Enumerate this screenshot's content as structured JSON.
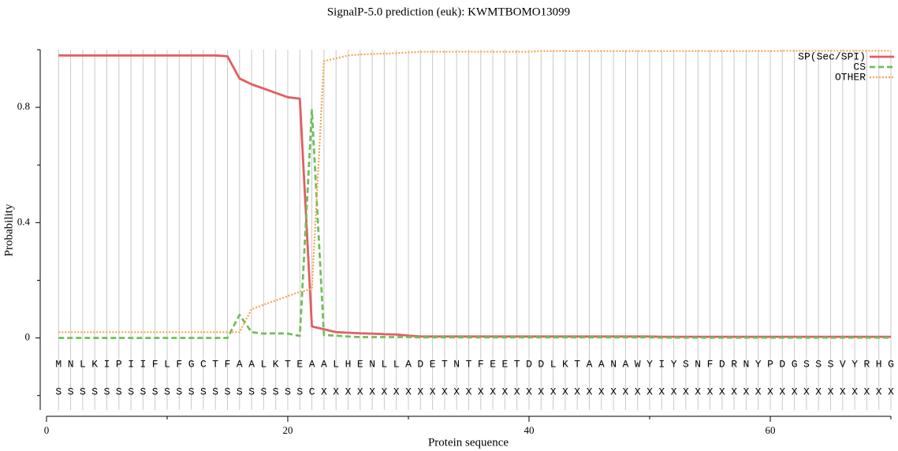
{
  "chart_data": {
    "type": "line",
    "title": "SignalP-5.0 prediction (euk):  KWMTBOMO13099",
    "xlabel": "Protein sequence",
    "ylabel": "Probability",
    "xlim": [
      0,
      70
    ],
    "xticks": [
      0,
      20,
      40,
      60
    ],
    "xminor_ticks": [
      10,
      30,
      50,
      70
    ],
    "ylim": [
      -0.25,
      1.0
    ],
    "yticks": [
      0,
      0.4,
      0.8
    ],
    "yminor_ticks": [
      -0.2,
      0.2,
      0.6,
      1.0
    ],
    "grid": "x",
    "legend": "top right",
    "x": [
      1,
      2,
      3,
      4,
      5,
      6,
      7,
      8,
      9,
      10,
      11,
      12,
      13,
      14,
      15,
      16,
      17,
      18,
      19,
      20,
      21,
      22,
      23,
      24,
      25,
      26,
      27,
      28,
      29,
      30,
      31,
      32,
      33,
      34,
      35,
      36,
      37,
      38,
      39,
      40,
      41,
      42,
      43,
      44,
      45,
      46,
      47,
      48,
      49,
      50,
      51,
      52,
      53,
      54,
      55,
      56,
      57,
      58,
      59,
      60,
      61,
      62,
      63,
      64,
      65,
      66,
      67,
      68,
      69,
      70
    ],
    "sequence": [
      "M",
      "N",
      "L",
      "K",
      "I",
      "P",
      "I",
      "I",
      "F",
      "L",
      "F",
      "G",
      "C",
      "T",
      "F",
      "A",
      "A",
      "L",
      "K",
      "T",
      "E",
      "A",
      "A",
      "L",
      "H",
      "E",
      "N",
      "L",
      "L",
      "A",
      "D",
      "E",
      "T",
      "N",
      "T",
      "F",
      "E",
      "E",
      "T",
      "D",
      "D",
      "L",
      "K",
      "T",
      "A",
      "A",
      "N",
      "A",
      "W",
      "Y",
      "I",
      "Y",
      "S",
      "N",
      "F",
      "D",
      "R",
      "N",
      "Y",
      "P",
      "D",
      "G",
      "S",
      "S",
      "S",
      "V",
      "Y",
      "R",
      "H",
      "G"
    ],
    "labels": [
      "S",
      "S",
      "S",
      "S",
      "S",
      "S",
      "S",
      "S",
      "S",
      "S",
      "S",
      "S",
      "S",
      "S",
      "S",
      "S",
      "S",
      "S",
      "S",
      "S",
      "S",
      "C",
      "X",
      "X",
      "X",
      "X",
      "X",
      "X",
      "X",
      "X",
      "X",
      "X",
      "X",
      "X",
      "X",
      "X",
      "X",
      "X",
      "X",
      "X",
      "X",
      "X",
      "X",
      "X",
      "X",
      "X",
      "X",
      "X",
      "X",
      "X",
      "X",
      "X",
      "X",
      "X",
      "X",
      "X",
      "X",
      "X",
      "X",
      "X",
      "X",
      "X",
      "X",
      "X",
      "X",
      "X",
      "X",
      "X",
      "X",
      "X"
    ],
    "series": [
      {
        "name": "SP(Sec/SPI)",
        "color": "#e35d61",
        "style": "solid",
        "values": [
          0.98,
          0.98,
          0.98,
          0.98,
          0.98,
          0.98,
          0.98,
          0.98,
          0.98,
          0.98,
          0.98,
          0.98,
          0.98,
          0.98,
          0.977,
          0.9,
          0.88,
          0.865,
          0.85,
          0.835,
          0.83,
          0.04,
          0.03,
          0.02,
          0.018,
          0.016,
          0.015,
          0.013,
          0.012,
          0.008,
          0.005,
          0.005,
          0.005,
          0.005,
          0.005,
          0.005,
          0.005,
          0.005,
          0.005,
          0.005,
          0.005,
          0.005,
          0.005,
          0.005,
          0.005,
          0.005,
          0.005,
          0.005,
          0.005,
          0.005,
          0.004,
          0.004,
          0.004,
          0.004,
          0.004,
          0.004,
          0.004,
          0.004,
          0.004,
          0.004,
          0.004,
          0.004,
          0.004,
          0.004,
          0.004,
          0.004,
          0.004,
          0.004,
          0.004,
          0.004
        ]
      },
      {
        "name": "CS",
        "color": "#6fbf5c",
        "style": "dashed",
        "values": [
          0,
          0,
          0,
          0,
          0,
          0,
          0,
          0,
          0,
          0,
          0,
          0,
          0,
          0,
          0,
          0.08,
          0.02,
          0.015,
          0.016,
          0.015,
          0.007,
          0.79,
          0.01,
          0.008,
          0.005,
          0.003,
          0.003,
          0.003,
          0.003,
          0.003,
          0.002,
          0.002,
          0.002,
          0.002,
          0.002,
          0.002,
          0.002,
          0.002,
          0.002,
          0.002,
          0.002,
          0.002,
          0.002,
          0.002,
          0.002,
          0.002,
          0.002,
          0.002,
          0.002,
          0.002,
          0.001,
          0.001,
          0.001,
          0.001,
          0.001,
          0.001,
          0.001,
          0.001,
          0.001,
          0.001,
          0.001,
          0.001,
          0.001,
          0.001,
          0.001,
          0.001,
          0.001,
          0.001,
          0.001,
          0.001
        ]
      },
      {
        "name": "OTHER",
        "color": "#f6a34d",
        "style": "dotted",
        "values": [
          0.02,
          0.02,
          0.02,
          0.02,
          0.02,
          0.02,
          0.02,
          0.02,
          0.02,
          0.02,
          0.02,
          0.02,
          0.02,
          0.02,
          0.02,
          0.02,
          0.1,
          0.115,
          0.13,
          0.145,
          0.16,
          0.17,
          0.96,
          0.97,
          0.98,
          0.983,
          0.985,
          0.986,
          0.988,
          0.99,
          0.993,
          0.993,
          0.993,
          0.993,
          0.993,
          0.993,
          0.993,
          0.993,
          0.993,
          0.993,
          0.995,
          0.995,
          0.995,
          0.995,
          0.995,
          0.995,
          0.995,
          0.995,
          0.995,
          0.995,
          0.995,
          0.995,
          0.995,
          0.995,
          0.995,
          0.995,
          0.995,
          0.995,
          0.995,
          0.995,
          0.996,
          0.996,
          0.996,
          0.996,
          0.996,
          0.996,
          0.996,
          0.996,
          0.996,
          0.996
        ]
      }
    ]
  }
}
